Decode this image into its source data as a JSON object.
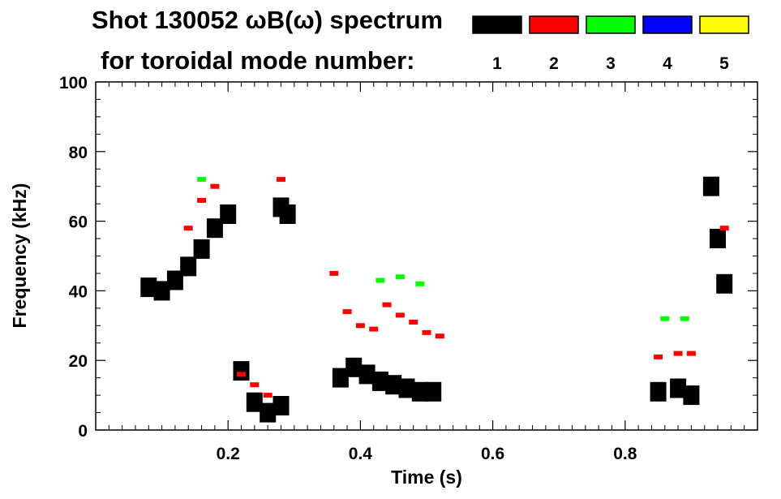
{
  "chart_data": {
    "type": "heatmap",
    "title": "Shot 130052 ωB(ω) spectrum",
    "subtitle": "for toroidal mode number:",
    "xlabel": "Time (s)",
    "ylabel": "Frequency (kHz)",
    "xlim": [
      0.0,
      1.0
    ],
    "ylim": [
      0,
      100
    ],
    "x_ticks": [
      0.2,
      0.4,
      0.6,
      0.8
    ],
    "x_tick_labels": [
      "0.2",
      "0.4",
      "0.6",
      "0.8"
    ],
    "y_ticks": [
      0,
      20,
      40,
      60,
      80,
      100
    ],
    "y_tick_labels": [
      "0",
      "20",
      "40",
      "60",
      "80",
      "100"
    ],
    "legend": [
      {
        "label": "1",
        "color": "#000000"
      },
      {
        "label": "2",
        "color": "#ff0000"
      },
      {
        "label": "3",
        "color": "#00ff00"
      },
      {
        "label": "4",
        "color": "#0000ff"
      },
      {
        "label": "5",
        "color": "#ffff00"
      }
    ],
    "series": [
      {
        "name": "mode 1",
        "mode": 1,
        "color": "#000000",
        "points": [
          [
            0.08,
            41
          ],
          [
            0.1,
            40
          ],
          [
            0.12,
            43
          ],
          [
            0.14,
            47
          ],
          [
            0.16,
            52
          ],
          [
            0.18,
            58
          ],
          [
            0.2,
            62
          ],
          [
            0.22,
            17
          ],
          [
            0.24,
            8
          ],
          [
            0.26,
            5
          ],
          [
            0.28,
            7
          ],
          [
            0.28,
            64
          ],
          [
            0.29,
            62
          ],
          [
            0.37,
            15
          ],
          [
            0.39,
            18
          ],
          [
            0.41,
            16
          ],
          [
            0.43,
            14
          ],
          [
            0.45,
            13
          ],
          [
            0.47,
            12
          ],
          [
            0.49,
            11
          ],
          [
            0.51,
            11
          ],
          [
            0.85,
            11
          ],
          [
            0.88,
            12
          ],
          [
            0.9,
            10
          ],
          [
            0.93,
            70
          ],
          [
            0.94,
            55
          ],
          [
            0.95,
            42
          ]
        ]
      },
      {
        "name": "mode 2",
        "mode": 2,
        "color": "#ff0000",
        "points": [
          [
            0.14,
            58
          ],
          [
            0.16,
            66
          ],
          [
            0.18,
            70
          ],
          [
            0.22,
            16
          ],
          [
            0.24,
            13
          ],
          [
            0.26,
            10
          ],
          [
            0.28,
            72
          ],
          [
            0.36,
            45
          ],
          [
            0.38,
            34
          ],
          [
            0.4,
            30
          ],
          [
            0.42,
            29
          ],
          [
            0.44,
            36
          ],
          [
            0.46,
            33
          ],
          [
            0.48,
            31
          ],
          [
            0.5,
            28
          ],
          [
            0.52,
            27
          ],
          [
            0.85,
            21
          ],
          [
            0.88,
            22
          ],
          [
            0.9,
            22
          ],
          [
            0.95,
            58
          ]
        ]
      },
      {
        "name": "mode 3",
        "mode": 3,
        "color": "#00ff00",
        "points": [
          [
            0.16,
            72
          ],
          [
            0.43,
            43
          ],
          [
            0.46,
            44
          ],
          [
            0.49,
            42
          ],
          [
            0.86,
            32
          ],
          [
            0.89,
            32
          ]
        ]
      },
      {
        "name": "mode 4",
        "mode": 4,
        "color": "#0000ff",
        "points": []
      },
      {
        "name": "mode 5",
        "mode": 5,
        "color": "#ffff00",
        "points": []
      }
    ]
  }
}
